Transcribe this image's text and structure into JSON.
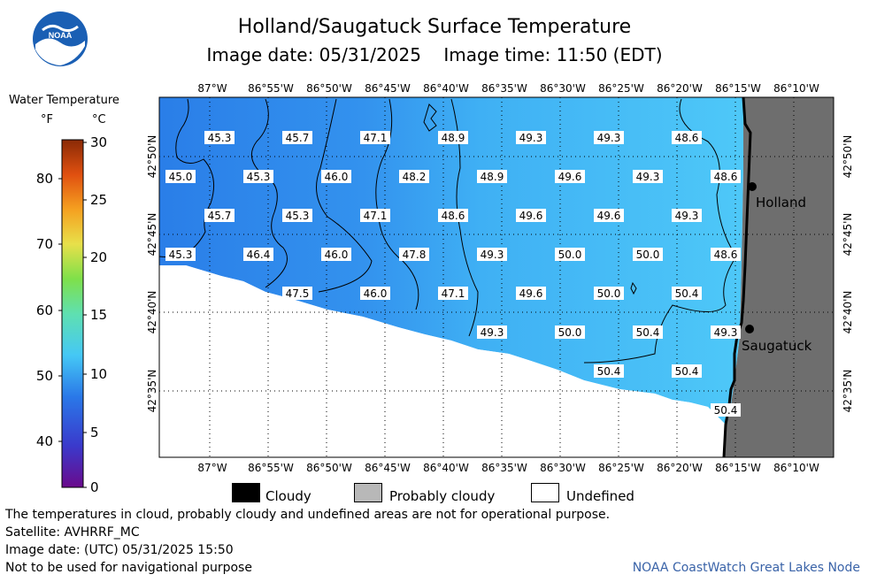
{
  "title": "Holland/Saugatuck Surface Temperature",
  "subtitle": "Image date: 05/31/2025    Image time: 11:50 (EDT)",
  "logo_text": "NOAA",
  "legend": {
    "title": "Water Temperature",
    "unit_f": "°F",
    "unit_c": "°C",
    "f_ticks": [
      "80",
      "70",
      "60",
      "50",
      "40"
    ],
    "c_ticks": [
      "30",
      "25",
      "20",
      "15",
      "10",
      "5",
      "0"
    ]
  },
  "lon_labels": [
    "87°W",
    "86°55'W",
    "86°50'W",
    "86°45'W",
    "86°40'W",
    "86°35'W",
    "86°30'W",
    "86°25'W",
    "86°20'W",
    "86°15'W",
    "86°10'W"
  ],
  "lat_labels": [
    "42°50'N",
    "42°45'N",
    "42°40'N",
    "42°35'N"
  ],
  "cities": [
    "Holland",
    "Saugatuck"
  ],
  "temps": [
    "45.3",
    "45.7",
    "47.1",
    "48.9",
    "49.3",
    "49.3",
    "48.6",
    "45.0",
    "45.3",
    "46.0",
    "48.2",
    "48.9",
    "49.6",
    "49.3",
    "48.6",
    "45.7",
    "45.3",
    "47.1",
    "48.6",
    "49.6",
    "49.6",
    "49.3",
    "45.3",
    "46.4",
    "46.0",
    "47.8",
    "49.3",
    "50.0",
    "50.0",
    "48.6",
    "47.5",
    "46.0",
    "47.1",
    "49.6",
    "50.0",
    "50.4",
    "49.3",
    "50.0",
    "50.4",
    "49.3",
    "50.4",
    "50.4",
    "50.4"
  ],
  "bottom_legend": {
    "cloudy": "Cloudy",
    "probably_cloudy": "Probably cloudy",
    "undefined": "Undefined"
  },
  "notes": [
    "The temperatures in cloud, probably cloudy and undefined areas are not for operational purpose.",
    "Satellite: AVHRRF_MC",
    "Image date: (UTC) 05/31/2025  15:50",
    "Not to be used for navigational purpose"
  ],
  "credit": "NOAA CoastWatch Great Lakes Node",
  "colors": {
    "water_dark": "#2a7ee8",
    "water_mid": "#3aa4f2",
    "water_light": "#4cc3f8",
    "land": "#6e6e6e",
    "noaa_blue": "#1a5fb4"
  }
}
